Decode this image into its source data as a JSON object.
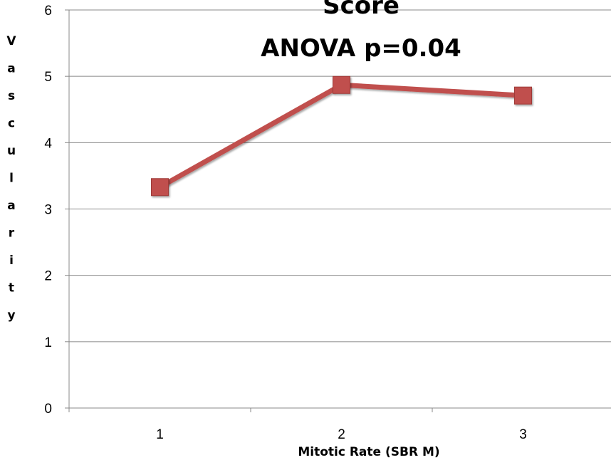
{
  "chart_data": {
    "type": "line",
    "title_lines": [
      "Score",
      "ANOVA p=0.04"
    ],
    "xlabel": "Mitotic Rate (SBR M)",
    "ylabel": "Vascularity",
    "x": [
      1,
      2,
      3
    ],
    "categories": [
      "1",
      "2",
      "3"
    ],
    "series": [
      {
        "values": [
          3.33,
          4.87,
          4.71
        ]
      }
    ],
    "ylim": [
      0,
      6
    ],
    "yticks": [
      "0",
      "1",
      "2",
      "3",
      "4",
      "5",
      "6"
    ],
    "grid": true,
    "legend": "none",
    "colors": {
      "line": "#c0504d",
      "marker": "#c0504d",
      "gridline": "#888888",
      "axis": "#888888"
    }
  }
}
